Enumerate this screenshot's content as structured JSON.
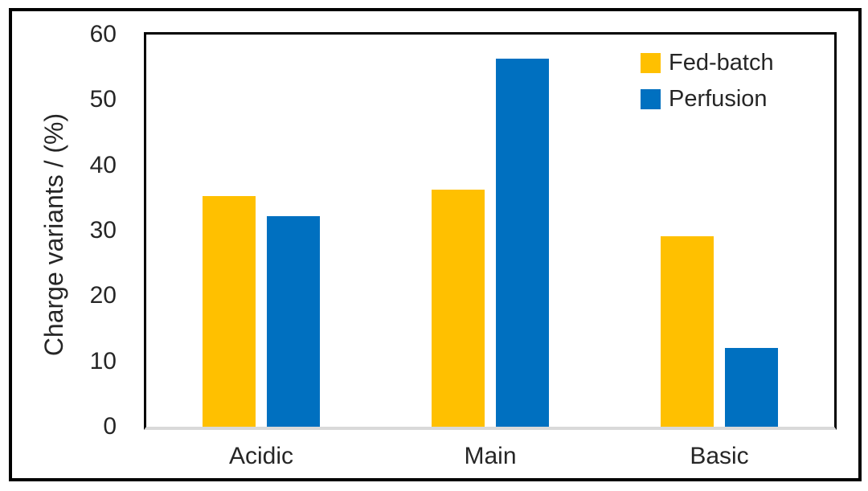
{
  "figure": {
    "background": "#ffffff",
    "border_color": "#000000"
  },
  "chart_data": {
    "type": "bar",
    "categories": [
      "Acidic",
      "Main",
      "Basic"
    ],
    "series": [
      {
        "name": "Fed-batch",
        "color": "#FFC000",
        "values": [
          35.3,
          36.3,
          29.1
        ]
      },
      {
        "name": "Perfusion",
        "color": "#0070C0",
        "values": [
          32.2,
          56.3,
          12.0
        ]
      }
    ],
    "title": "",
    "xlabel": "",
    "ylabel": "Charge variants / (%)",
    "ylim": [
      0,
      60
    ],
    "yticks": [
      0,
      10,
      20,
      30,
      40,
      50,
      60
    ],
    "grid": false,
    "legend_position": "top-right",
    "axis_color": "#000000",
    "baseline_color": "#D9D9D9",
    "text_color": "#262626"
  }
}
